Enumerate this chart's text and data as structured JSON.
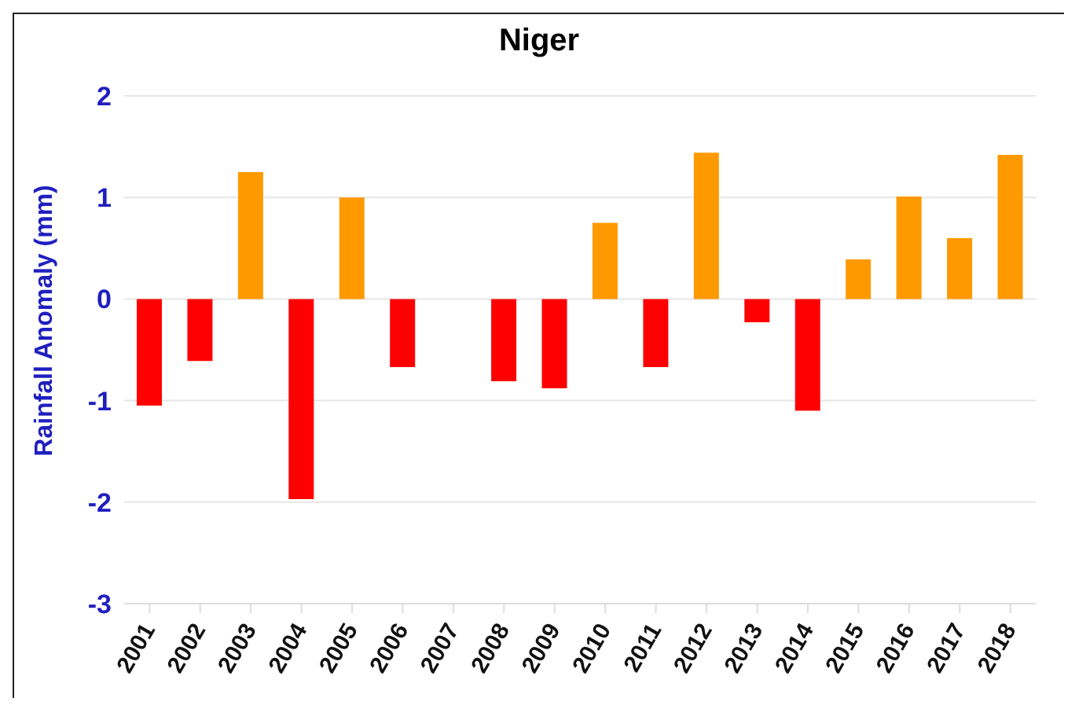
{
  "chart_data": {
    "type": "bar",
    "title": "Niger",
    "ylabel": "Rainfall Anomaly (mm)",
    "categories": [
      "2001",
      "2002",
      "2003",
      "2004",
      "2005",
      "2006",
      "2007",
      "2008",
      "2009",
      "2010",
      "2011",
      "2012",
      "2013",
      "2014",
      "2015",
      "2016",
      "2017",
      "2018"
    ],
    "values": [
      -1.05,
      -0.61,
      1.25,
      -1.97,
      1.0,
      -0.67,
      null,
      -0.81,
      -0.88,
      0.75,
      -0.67,
      1.44,
      -0.23,
      -1.1,
      0.39,
      1.01,
      0.6,
      1.42
    ],
    "colors": [
      "#ff0000",
      "#ff0000",
      "#ff9900",
      "#ff0000",
      "#ff9900",
      "#ff0000",
      null,
      "#ff0000",
      "#ff0000",
      "#ff9900",
      "#ff0000",
      "#ff9900",
      "#ff0000",
      "#ff0000",
      "#ff9900",
      "#ff9900",
      "#ff9900",
      "#ff9900"
    ],
    "ylim": [
      -3,
      2
    ],
    "yticks": [
      -3,
      -2,
      -1,
      0,
      1,
      2
    ],
    "grid": "y",
    "legend": false
  }
}
